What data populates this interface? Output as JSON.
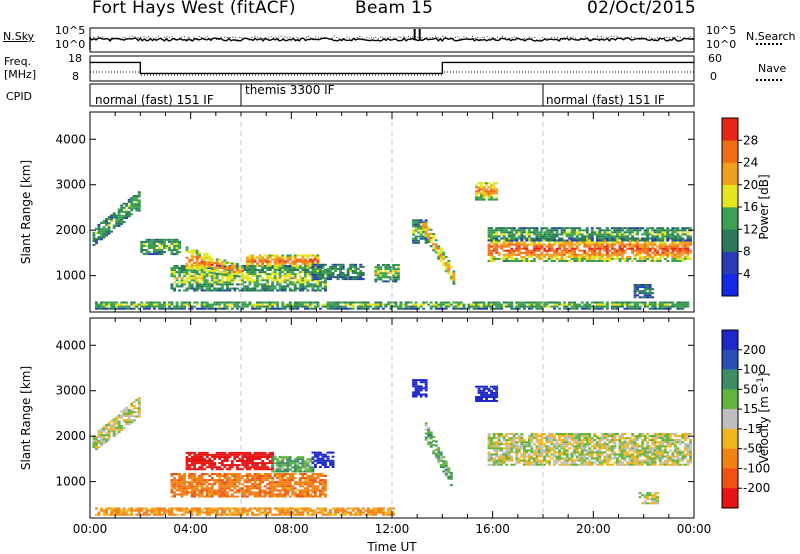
{
  "header": {
    "station": "Fort Hays West (fitACF)",
    "beam": "Beam 15",
    "date": "02/Oct/2015"
  },
  "status_panels": {
    "nsky_label": "N.Sky",
    "nsky_ticks": [
      "10^5",
      "10^0"
    ],
    "nsearch_label": "N.Search",
    "nsearch_ticks": [
      "10^5",
      "10^0"
    ],
    "freq_label_line1": "Freq.",
    "freq_label_line2": "[MHz]",
    "freq_ticks": [
      "18",
      "8"
    ],
    "nave_label": "Nave",
    "nave_ticks": [
      "60",
      "0"
    ],
    "freq_steps": [
      {
        "t0": 0,
        "t1": 2,
        "mhz": 16
      },
      {
        "t0": 2,
        "t1": 14,
        "mhz": 11
      },
      {
        "t0": 14,
        "t1": 24,
        "mhz": 16
      }
    ],
    "cpid_label": "CPID",
    "cpid_segments": [
      {
        "text": "normal (fast) 151 IF"
      },
      {
        "text": "themis 3300 IF"
      },
      {
        "text": "normal (fast) 151 IF"
      }
    ]
  },
  "chart_data": [
    {
      "type": "heatmap",
      "parameter": "power",
      "ylabel": "Slant Range [km]",
      "xlim": [
        0,
        24
      ],
      "ylim": [
        200,
        4600
      ],
      "yticks": [
        "4000",
        "3000",
        "2000",
        "1000"
      ],
      "colorbar_label": "Power [dB]",
      "colorbar_ticks": [
        "28",
        "24",
        "20",
        "16",
        "12",
        "8",
        "4"
      ],
      "colors": [
        "#1428e6",
        "#283cb4",
        "#2a7a5a",
        "#3ca050",
        "#e6e61e",
        "#f0a01e",
        "#f06e14",
        "#e62814"
      ],
      "features": [
        {
          "t0": 0.1,
          "t1": 2.0,
          "r0": 1650,
          "r1": 2000,
          "t1r0": 2450,
          "t1r1": 2900,
          "level": 0.42
        },
        {
          "t0": 2.0,
          "t1": 3.6,
          "r0": 1450,
          "r1": 1800,
          "level": 0.45
        },
        {
          "t0": 3.2,
          "t1": 9.3,
          "r0": 650,
          "r1": 1200,
          "level": 0.5
        },
        {
          "t0": 3.8,
          "t1": 6.0,
          "r0": 1100,
          "r1": 1600,
          "t1r0": 950,
          "t1r1": 1200,
          "level": 0.75
        },
        {
          "t0": 6.2,
          "t1": 9.0,
          "r0": 1150,
          "r1": 1450,
          "level": 0.8
        },
        {
          "t0": 8.8,
          "t1": 10.8,
          "r0": 900,
          "r1": 1250,
          "level": 0.35
        },
        {
          "t0": 11.3,
          "t1": 12.2,
          "r0": 850,
          "r1": 1250,
          "level": 0.5
        },
        {
          "t0": 12.8,
          "t1": 13.3,
          "r0": 1700,
          "r1": 2200,
          "level": 0.4
        },
        {
          "t0": 13.2,
          "t1": 14.4,
          "r0": 1900,
          "r1": 2300,
          "t1r0": 800,
          "t1r1": 1100,
          "level": 0.7
        },
        {
          "t0": 15.3,
          "t1": 16.2,
          "r0": 2650,
          "r1": 3050,
          "level": 0.75
        },
        {
          "t0": 15.8,
          "t1": 23.9,
          "r0": 1300,
          "r1": 1800,
          "level": 0.85
        },
        {
          "t0": 15.8,
          "t1": 23.9,
          "r0": 1750,
          "r1": 2050,
          "level": 0.4
        },
        {
          "t0": 21.6,
          "t1": 22.4,
          "r0": 500,
          "r1": 800,
          "level": 0.25
        },
        {
          "t0": 0.2,
          "t1": 23.8,
          "r0": 250,
          "r1": 420,
          "level": 0.45
        }
      ]
    },
    {
      "type": "heatmap",
      "parameter": "velocity",
      "ylabel": "Slant Range [km]",
      "xlabel": "Time UT",
      "xlim": [
        0,
        24
      ],
      "ylim": [
        200,
        4600
      ],
      "xticks": [
        "00:00",
        "04:00",
        "08:00",
        "12:00",
        "16:00",
        "20:00",
        "00:00"
      ],
      "yticks": [
        "4000",
        "3000",
        "2000",
        "1000"
      ],
      "colorbar_label": "Velocity [m s^-1]",
      "colorbar_ticks": [
        "200",
        "100",
        "50",
        "15",
        "-15",
        "-50",
        "-100",
        "-200"
      ],
      "colors": [
        "#1e28c8",
        "#2850b4",
        "#3c8c64",
        "#64b43c",
        "#bebebe",
        "#f0b41e",
        "#f08214",
        "#f05014",
        "#e61414"
      ],
      "features": [
        {
          "t0": 0.1,
          "t1": 2.0,
          "r0": 1650,
          "r1": 2000,
          "t1r0": 2450,
          "t1r1": 2900,
          "vel": 0
        },
        {
          "t0": 3.8,
          "t1": 7.2,
          "r0": 1250,
          "r1": 1650,
          "vel": -220
        },
        {
          "t0": 7.2,
          "t1": 8.8,
          "r0": 1200,
          "r1": 1550,
          "vel": 30
        },
        {
          "t0": 8.8,
          "t1": 9.6,
          "r0": 1300,
          "r1": 1650,
          "vel": 180
        },
        {
          "t0": 3.2,
          "t1": 9.3,
          "r0": 650,
          "r1": 1150,
          "vel": -60
        },
        {
          "t0": 0.2,
          "t1": 12.0,
          "r0": 250,
          "r1": 420,
          "vel": -40
        },
        {
          "t0": 13.3,
          "t1": 14.3,
          "r0": 1900,
          "r1": 2300,
          "t1r0": 900,
          "t1r1": 1200,
          "vel": 30
        },
        {
          "t0": 12.8,
          "t1": 13.3,
          "r0": 2850,
          "r1": 3250,
          "vel": 200
        },
        {
          "t0": 15.3,
          "t1": 16.1,
          "r0": 2750,
          "r1": 3100,
          "vel": 200
        },
        {
          "t0": 15.8,
          "t1": 23.9,
          "r0": 1350,
          "r1": 2050,
          "vel": 0
        },
        {
          "t0": 21.8,
          "t1": 22.6,
          "r0": 500,
          "r1": 750,
          "vel": 0
        }
      ]
    }
  ]
}
